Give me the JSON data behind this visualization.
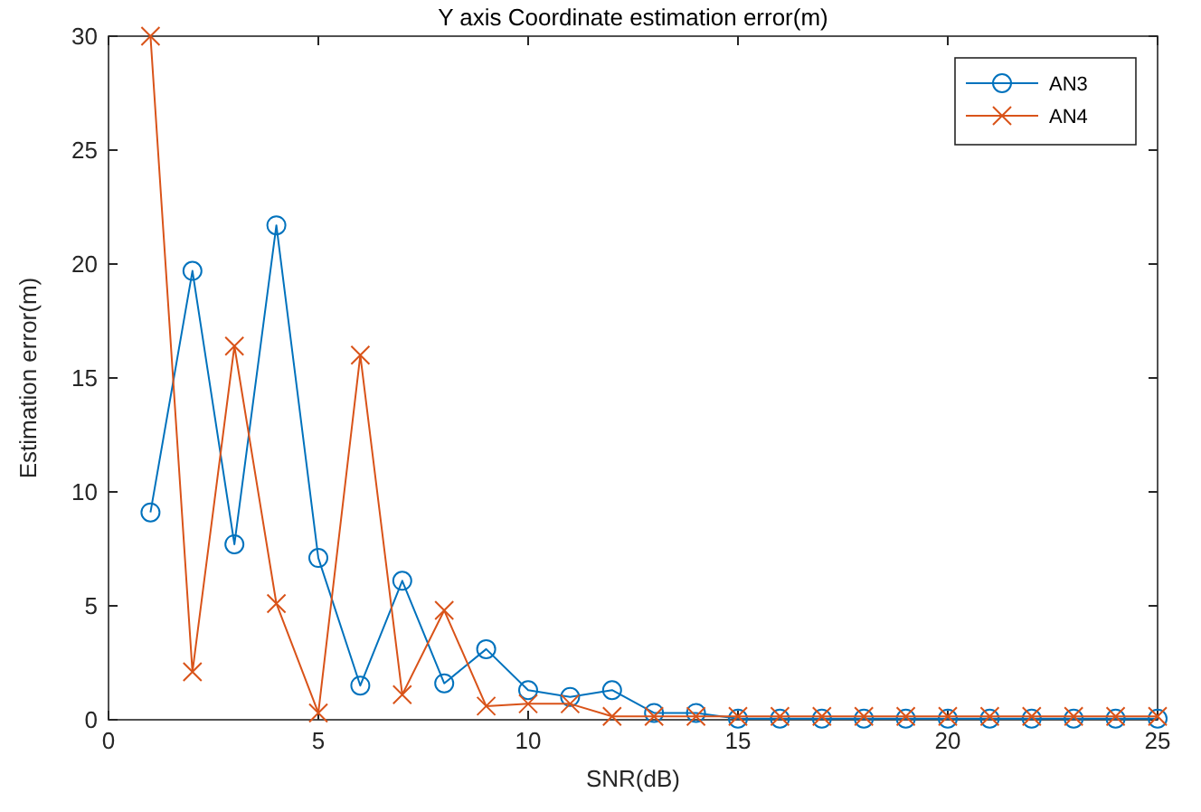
{
  "chart_data": {
    "type": "line",
    "title": "Y axis Coordinate estimation error(m)",
    "xlabel": "SNR(dB)",
    "ylabel": "Estimation error(m)",
    "x": [
      1,
      2,
      3,
      4,
      5,
      6,
      7,
      8,
      9,
      10,
      11,
      12,
      13,
      14,
      15,
      16,
      17,
      18,
      19,
      20,
      21,
      22,
      23,
      24,
      25
    ],
    "series": [
      {
        "name": "AN3",
        "color": "#0072bd",
        "marker": "circle",
        "values": [
          9.1,
          19.7,
          7.7,
          21.7,
          7.1,
          1.5,
          6.1,
          1.6,
          3.1,
          1.3,
          1.0,
          1.3,
          0.3,
          0.3,
          0.05,
          0.05,
          0.05,
          0.05,
          0.05,
          0.05,
          0.05,
          0.05,
          0.05,
          0.05,
          0.05
        ]
      },
      {
        "name": "AN4",
        "color": "#d95319",
        "marker": "cross",
        "values": [
          30,
          2.1,
          16.4,
          5.1,
          0.3,
          16.0,
          1.1,
          4.8,
          0.6,
          0.7,
          0.7,
          0.15,
          0.15,
          0.15,
          0.15,
          0.15,
          0.15,
          0.15,
          0.15,
          0.15,
          0.15,
          0.15,
          0.15,
          0.15,
          0.15
        ]
      }
    ],
    "xlim": [
      0,
      25
    ],
    "xticks": [
      0,
      5,
      10,
      15,
      20,
      25
    ],
    "ylim": [
      0,
      30
    ],
    "yticks": [
      0,
      5,
      10,
      15,
      20,
      25,
      30
    ],
    "grid": false,
    "legend": "top right"
  }
}
